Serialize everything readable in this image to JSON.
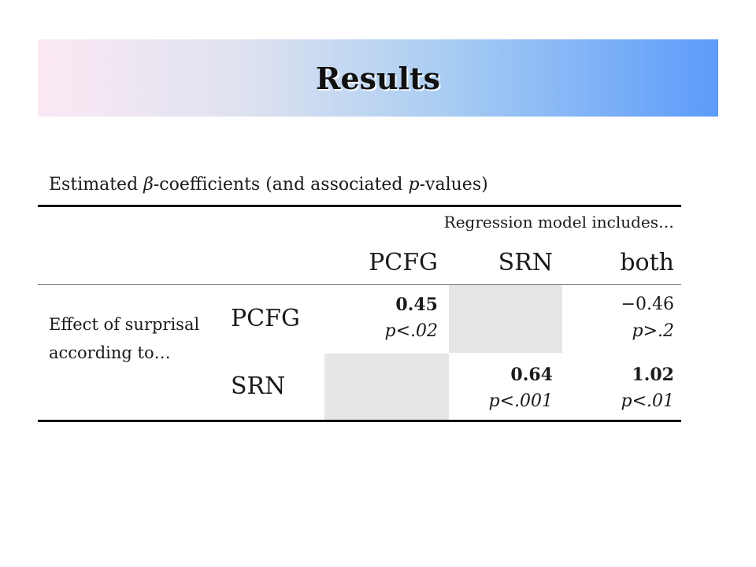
{
  "slide": {
    "title": "Results",
    "caption": {
      "part1": "Estimated ",
      "beta": "β",
      "part2": "-coefficients (and associated ",
      "p": "p",
      "part3": "-values)"
    },
    "colors": {
      "banner_gradient": [
        "#fbe9f4",
        "#dfe2f0",
        "#a9cdf2",
        "#5c9bfa"
      ],
      "empty_cell": "#e6e6e6"
    }
  },
  "table": {
    "group_header": "Regression model includes…",
    "columns": [
      "PCFG",
      "SRN",
      "both"
    ],
    "row_group_label": "Effect of surprisal according to…",
    "rows": [
      {
        "label": "PCFG",
        "cells": [
          {
            "value": "0.45",
            "bold": true,
            "p": "p<.02"
          },
          {
            "value": "",
            "bold": false,
            "p": ""
          },
          {
            "value": "−0.46",
            "bold": false,
            "p": "p>.2"
          }
        ]
      },
      {
        "label": "SRN",
        "cells": [
          {
            "value": "",
            "bold": false,
            "p": ""
          },
          {
            "value": "0.64",
            "bold": true,
            "p": "p<.001"
          },
          {
            "value": "1.02",
            "bold": true,
            "p": "p<.01"
          }
        ]
      }
    ]
  }
}
